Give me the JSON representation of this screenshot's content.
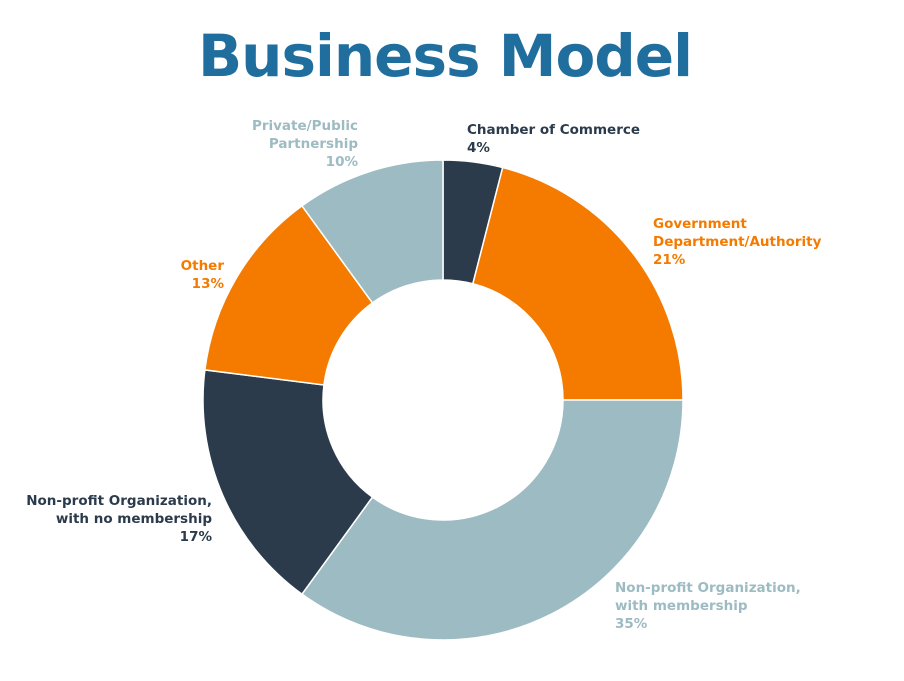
{
  "chart_data": {
    "type": "donut",
    "title": "Business Model",
    "categories": [
      "Chamber of Commerce",
      "Government Department/Authority",
      "Non-profit Organization, with membership",
      "Non-profit Organization, with no membership",
      "Other",
      "Private/Public Partnership"
    ],
    "values": [
      4,
      21,
      35,
      17,
      13,
      10
    ],
    "value_labels": [
      "4%",
      "21%",
      "35%",
      "17%",
      "13%",
      "10%"
    ],
    "colors": [
      "#2b3b4c",
      "#f47a00",
      "#9dbbc2",
      "#2b3b4c",
      "#f47a00",
      "#9dbbc2"
    ]
  }
}
